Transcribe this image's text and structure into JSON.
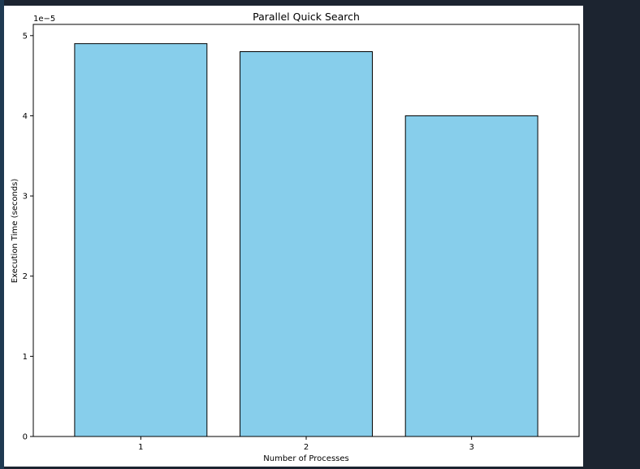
{
  "chart_data": {
    "type": "bar",
    "title": "Parallel Quick Search",
    "xlabel": "Number of Processes",
    "ylabel": "Execution Time (seconds)",
    "y_offset_label": "1e−5",
    "categories": [
      "1",
      "2",
      "3"
    ],
    "values": [
      4.9e-05,
      4.8e-05,
      4e-05
    ],
    "ylim": [
      0,
      5.14e-05
    ],
    "yticks": [
      0,
      1e-05,
      2e-05,
      3e-05,
      4e-05,
      5e-05
    ],
    "ytick_labels": [
      "0",
      "1",
      "2",
      "3",
      "4",
      "5"
    ],
    "grid": false,
    "bar_color": "#87ceeb",
    "bar_edge_color": "#000000"
  }
}
